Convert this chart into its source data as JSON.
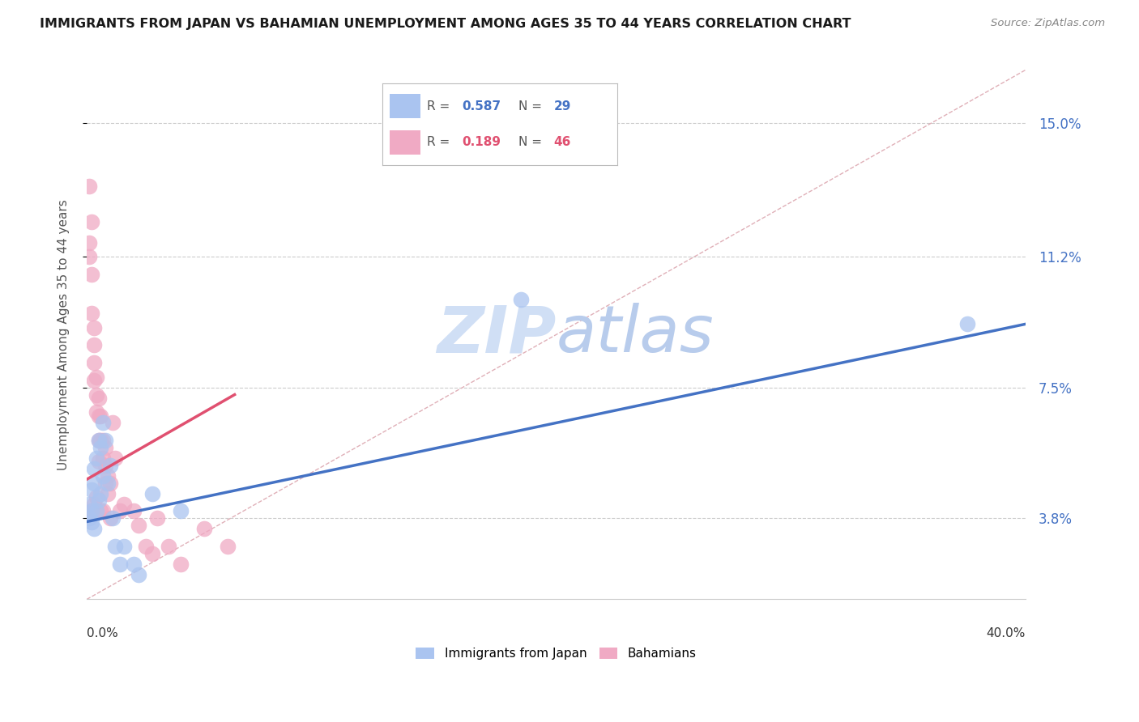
{
  "title": "IMMIGRANTS FROM JAPAN VS BAHAMIAN UNEMPLOYMENT AMONG AGES 35 TO 44 YEARS CORRELATION CHART",
  "source": "Source: ZipAtlas.com",
  "ylabel": "Unemployment Among Ages 35 to 44 years",
  "yticks": [
    0.038,
    0.075,
    0.112,
    0.15
  ],
  "ytick_labels": [
    "3.8%",
    "7.5%",
    "11.2%",
    "15.0%"
  ],
  "xmin": 0.0,
  "xmax": 0.4,
  "ymin": 0.015,
  "ymax": 0.165,
  "legend_label1": "Immigrants from Japan",
  "legend_label2": "Bahamians",
  "R_blue": 0.587,
  "N_blue": 29,
  "R_pink": 0.189,
  "N_pink": 46,
  "blue_color": "#aac4f0",
  "pink_color": "#f0aac4",
  "blue_line_color": "#4472c4",
  "pink_line_color": "#e05070",
  "diag_color": "#e0b0b8",
  "watermark_color": "#dde8f8",
  "background_color": "#ffffff",
  "grid_color": "#cccccc",
  "blue_scatter_x": [
    0.001,
    0.001,
    0.002,
    0.002,
    0.002,
    0.003,
    0.003,
    0.003,
    0.004,
    0.004,
    0.005,
    0.005,
    0.006,
    0.006,
    0.007,
    0.007,
    0.008,
    0.009,
    0.01,
    0.011,
    0.012,
    0.014,
    0.016,
    0.02,
    0.022,
    0.028,
    0.04,
    0.185,
    0.375
  ],
  "blue_scatter_y": [
    0.042,
    0.038,
    0.046,
    0.04,
    0.037,
    0.052,
    0.048,
    0.035,
    0.055,
    0.04,
    0.06,
    0.043,
    0.058,
    0.045,
    0.065,
    0.05,
    0.06,
    0.048,
    0.053,
    0.038,
    0.03,
    0.025,
    0.03,
    0.025,
    0.022,
    0.045,
    0.04,
    0.1,
    0.093
  ],
  "pink_scatter_x": [
    0.001,
    0.001,
    0.001,
    0.002,
    0.002,
    0.002,
    0.002,
    0.003,
    0.003,
    0.003,
    0.003,
    0.003,
    0.004,
    0.004,
    0.004,
    0.004,
    0.005,
    0.005,
    0.005,
    0.005,
    0.006,
    0.006,
    0.006,
    0.007,
    0.007,
    0.007,
    0.008,
    0.008,
    0.008,
    0.009,
    0.009,
    0.01,
    0.01,
    0.011,
    0.012,
    0.014,
    0.016,
    0.02,
    0.022,
    0.025,
    0.028,
    0.03,
    0.035,
    0.04,
    0.05,
    0.06
  ],
  "pink_scatter_y": [
    0.132,
    0.116,
    0.112,
    0.122,
    0.107,
    0.096,
    0.04,
    0.092,
    0.087,
    0.082,
    0.077,
    0.042,
    0.078,
    0.073,
    0.068,
    0.044,
    0.072,
    0.067,
    0.06,
    0.054,
    0.067,
    0.06,
    0.04,
    0.06,
    0.055,
    0.04,
    0.058,
    0.053,
    0.048,
    0.05,
    0.045,
    0.048,
    0.038,
    0.065,
    0.055,
    0.04,
    0.042,
    0.04,
    0.036,
    0.03,
    0.028,
    0.038,
    0.03,
    0.025,
    0.035,
    0.03
  ],
  "blue_trend_x0": 0.0,
  "blue_trend_y0": 0.037,
  "blue_trend_x1": 0.4,
  "blue_trend_y1": 0.093,
  "pink_trend_x0": 0.0,
  "pink_trend_y0": 0.049,
  "pink_trend_x1": 0.063,
  "pink_trend_y1": 0.073
}
